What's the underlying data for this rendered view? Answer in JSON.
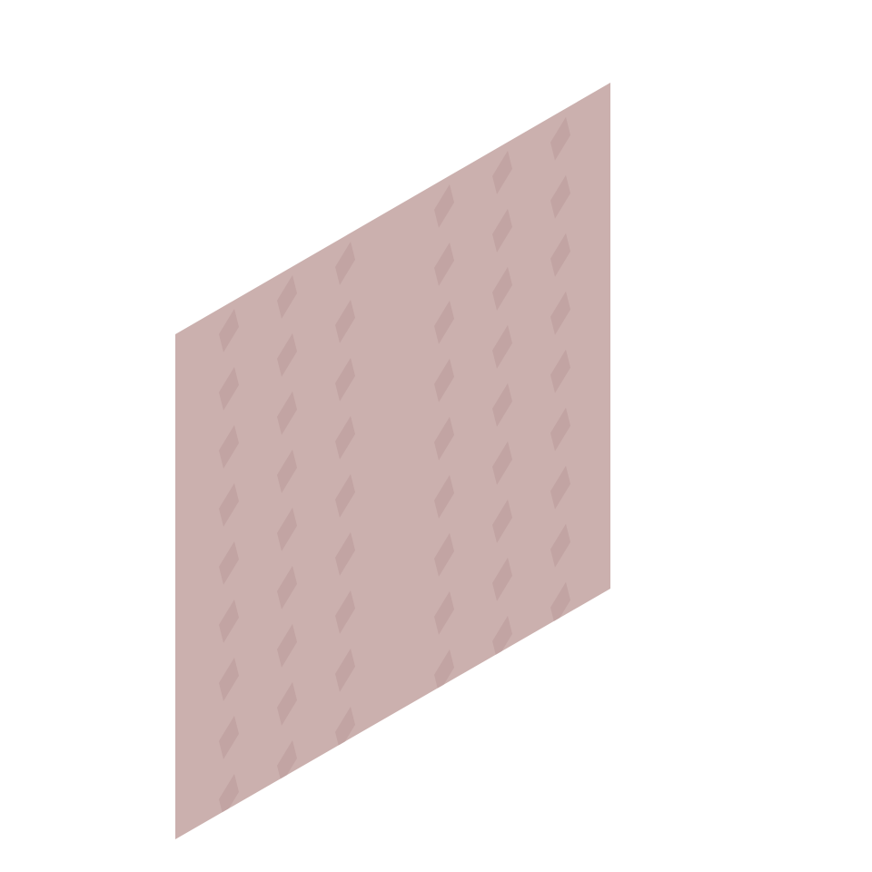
{
  "scene": {
    "object": "isometric-wall-panel",
    "face_color": "#cbb0ae",
    "pattern_color": "#c2a4a3",
    "pattern": "diamond-columns",
    "columns": [
      {
        "rows": 9
      },
      {
        "rows": 9
      },
      {
        "rows": 9
      },
      {
        "rows": 9
      },
      {
        "rows": 9
      },
      {
        "rows": 9
      }
    ]
  }
}
